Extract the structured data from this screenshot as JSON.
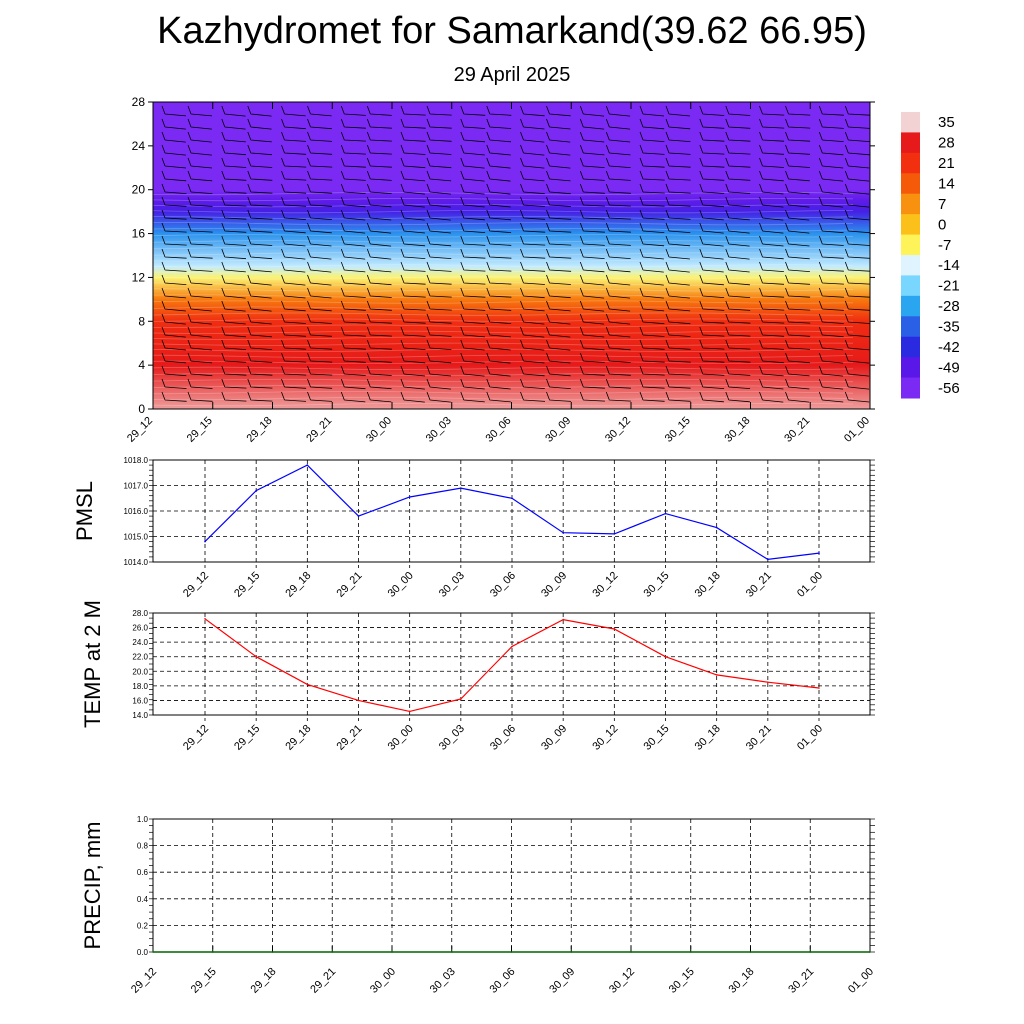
{
  "title": "Kazhydromet for Samarkand(39.62 66.95)",
  "subtitle": "29 April 2025",
  "time_labels": [
    "29_12",
    "29_15",
    "29_18",
    "29_21",
    "30_00",
    "30_03",
    "30_06",
    "30_09",
    "30_12",
    "30_15",
    "30_18",
    "30_21",
    "01_00"
  ],
  "colors": {
    "pmsl_line": "#0000ff",
    "temp_line": "#ff0000",
    "precip_line": "#006400",
    "grid": "#000000"
  },
  "chart_data": [
    {
      "type": "heatmap",
      "name": "upper-air temperature and wind cross-section",
      "xlabel": "",
      "ylabel": "",
      "ylim": [
        0,
        28
      ],
      "yticks": [
        "0",
        "4",
        "8",
        "12",
        "16",
        "20",
        "24",
        "28"
      ],
      "colorbar": {
        "labels": [
          "35",
          "28",
          "21",
          "14",
          "7",
          "0",
          "-7",
          "-14",
          "-21",
          "-28",
          "-35",
          "-42",
          "-49",
          "-56"
        ],
        "colors": [
          "#f2d2d2",
          "#e61a1a",
          "#f23010",
          "#f55a0a",
          "#f89010",
          "#fbc01a",
          "#fff35a",
          "#e0f4ff",
          "#78d6ff",
          "#2aa6f0",
          "#2a60e6",
          "#2a2ae0",
          "#5a18e8",
          "#7a2af2"
        ]
      },
      "temperature_profile": [
        {
          "height": 0,
          "temp": 33
        },
        {
          "height": 4,
          "temp": 28
        },
        {
          "height": 8,
          "temp": 22
        },
        {
          "height": 10,
          "temp": 10
        },
        {
          "height": 12,
          "temp": -8
        },
        {
          "height": 13,
          "temp": -16
        },
        {
          "height": 16,
          "temp": -30
        },
        {
          "height": 18,
          "temp": -46
        },
        {
          "height": 19,
          "temp": -50
        },
        {
          "height": 20,
          "temp": -56
        },
        {
          "height": 28,
          "temp": -56
        }
      ],
      "wind_barbs": "shown at every 3-hour column across all levels",
      "grid": false
    },
    {
      "type": "line",
      "ylabel": "PMSL",
      "ylim": [
        1014.0,
        1018.0
      ],
      "yticks": [
        "1014.0",
        "1015.0",
        "1016.0",
        "1017.0",
        "1018.0"
      ],
      "categories": [
        "29_12",
        "29_15",
        "29_18",
        "29_21",
        "30_00",
        "30_03",
        "30_06",
        "30_09",
        "30_12",
        "30_15",
        "30_18",
        "30_21",
        "01_00"
      ],
      "series": [
        {
          "values": [
            1014.8,
            1016.8,
            1017.8,
            1015.8,
            1016.55,
            1016.9,
            1016.5,
            1015.15,
            1015.1,
            1015.9,
            1015.35,
            1014.1,
            1014.35
          ]
        }
      ],
      "grid": true
    },
    {
      "type": "line",
      "ylabel": "TEMP at 2 M",
      "ylim": [
        14.0,
        28.0
      ],
      "yticks": [
        "14.0",
        "16.0",
        "18.0",
        "20.0",
        "22.0",
        "24.0",
        "26.0",
        "28.0"
      ],
      "categories": [
        "29_12",
        "29_15",
        "29_18",
        "29_21",
        "30_00",
        "30_03",
        "30_06",
        "30_09",
        "30_12",
        "30_15",
        "30_18",
        "30_21",
        "01_00"
      ],
      "series": [
        {
          "values": [
            27.2,
            22.0,
            18.2,
            16.0,
            14.5,
            16.2,
            23.4,
            27.1,
            25.8,
            22.0,
            19.5,
            18.5,
            17.7
          ]
        }
      ],
      "grid": true
    },
    {
      "type": "line",
      "ylabel": "PRECIP, mm",
      "ylim": [
        0.0,
        1.0
      ],
      "yticks": [
        "0.0",
        "0.2",
        "0.4",
        "0.6",
        "0.8",
        "1.0"
      ],
      "categories": [
        "29_12",
        "29_15",
        "29_18",
        "29_21",
        "30_00",
        "30_03",
        "30_06",
        "30_09",
        "30_12",
        "30_15",
        "30_18",
        "30_21",
        "01_00"
      ],
      "series": [
        {
          "values": [
            0,
            0,
            0,
            0,
            0,
            0,
            0,
            0,
            0,
            0,
            0,
            0,
            0
          ]
        }
      ],
      "grid": true
    }
  ]
}
